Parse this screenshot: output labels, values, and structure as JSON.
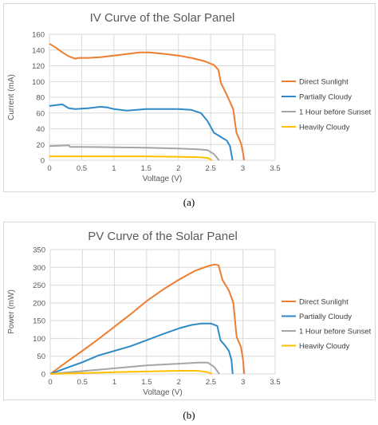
{
  "colors": {
    "direct": "#ED7D31",
    "partial": "#2E8AC6",
    "sunset": "#A5A5A5",
    "heavy": "#FFC000",
    "grid": "#D9D9D9",
    "text": "#595959"
  },
  "captions": {
    "a": "(a)",
    "b": "(b)"
  },
  "chart_data": [
    {
      "type": "line",
      "title": "IV Curve of the Solar Panel",
      "xlabel": "Voltage (V)",
      "ylabel": "Current (mA)",
      "xlim": [
        0,
        3.5
      ],
      "ylim": [
        0,
        160
      ],
      "xticks": [
        "0",
        "0.5",
        "1",
        "1.5",
        "2",
        "2.5",
        "3",
        "3.5"
      ],
      "yticks": [
        "0",
        "20",
        "40",
        "60",
        "80",
        "100",
        "120",
        "140",
        "160"
      ],
      "grid": true,
      "legend_position": "right",
      "series": [
        {
          "name": "Direct Sunlight",
          "color_key": "direct",
          "points": [
            [
              0,
              148
            ],
            [
              0.1,
              143
            ],
            [
              0.2,
              137
            ],
            [
              0.3,
              132
            ],
            [
              0.4,
              129
            ],
            [
              0.45,
              130
            ],
            [
              0.6,
              130
            ],
            [
              0.8,
              131
            ],
            [
              1.0,
              133
            ],
            [
              1.2,
              135
            ],
            [
              1.4,
              137
            ],
            [
              1.55,
              137
            ],
            [
              1.8,
              135
            ],
            [
              2.0,
              133
            ],
            [
              2.2,
              130
            ],
            [
              2.4,
              126
            ],
            [
              2.55,
              121
            ],
            [
              2.62,
              115
            ],
            [
              2.66,
              98
            ],
            [
              2.75,
              83
            ],
            [
              2.85,
              65
            ],
            [
              2.9,
              35
            ],
            [
              2.97,
              22
            ],
            [
              3.0,
              10
            ],
            [
              3.02,
              0
            ]
          ]
        },
        {
          "name": "Partially Cloudy",
          "color_key": "partial",
          "points": [
            [
              0,
              69
            ],
            [
              0.1,
              70
            ],
            [
              0.2,
              71
            ],
            [
              0.3,
              66
            ],
            [
              0.4,
              65
            ],
            [
              0.6,
              66
            ],
            [
              0.8,
              68
            ],
            [
              0.9,
              67
            ],
            [
              1.0,
              65
            ],
            [
              1.2,
              63
            ],
            [
              1.5,
              65
            ],
            [
              2.0,
              65
            ],
            [
              2.2,
              64
            ],
            [
              2.35,
              60
            ],
            [
              2.45,
              50
            ],
            [
              2.55,
              35
            ],
            [
              2.65,
              30
            ],
            [
              2.75,
              25
            ],
            [
              2.8,
              18
            ],
            [
              2.84,
              0
            ]
          ]
        },
        {
          "name": "1 Hour before Sunset",
          "color_key": "sunset",
          "points": [
            [
              0,
              18
            ],
            [
              0.3,
              19
            ],
            [
              0.32,
              17
            ],
            [
              0.5,
              17
            ],
            [
              1.0,
              16.5
            ],
            [
              1.5,
              16
            ],
            [
              2.0,
              15
            ],
            [
              2.3,
              14
            ],
            [
              2.45,
              13
            ],
            [
              2.55,
              8
            ],
            [
              2.6,
              3
            ],
            [
              2.63,
              0
            ]
          ]
        },
        {
          "name": "Heavily Cloudy",
          "color_key": "heavy",
          "points": [
            [
              0,
              5
            ],
            [
              0.5,
              5
            ],
            [
              1.0,
              5
            ],
            [
              1.5,
              5
            ],
            [
              2.0,
              4.5
            ],
            [
              2.3,
              4
            ],
            [
              2.45,
              3
            ],
            [
              2.52,
              0
            ]
          ]
        }
      ]
    },
    {
      "type": "line",
      "title": "PV Curve of the Solar Panel",
      "xlabel": "Voltage (V)",
      "ylabel": "Power (mW)",
      "xlim": [
        0,
        3.5
      ],
      "ylim": [
        0,
        350
      ],
      "xticks": [
        "0",
        "0.5",
        "1",
        "1.5",
        "2",
        "2.5",
        "3",
        "3.5"
      ],
      "yticks": [
        "0",
        "50",
        "100",
        "150",
        "200",
        "250",
        "300",
        "350"
      ],
      "grid": true,
      "legend_position": "right",
      "series": [
        {
          "name": "Direct Sunlight",
          "color_key": "direct",
          "points": [
            [
              0,
              0
            ],
            [
              0.25,
              33
            ],
            [
              0.5,
              65
            ],
            [
              0.75,
              98
            ],
            [
              1.0,
              133
            ],
            [
              1.25,
              168
            ],
            [
              1.5,
              205
            ],
            [
              1.75,
              237
            ],
            [
              2.0,
              265
            ],
            [
              2.25,
              290
            ],
            [
              2.45,
              303
            ],
            [
              2.55,
              308
            ],
            [
              2.62,
              306
            ],
            [
              2.68,
              265
            ],
            [
              2.78,
              235
            ],
            [
              2.85,
              200
            ],
            [
              2.9,
              105
            ],
            [
              2.97,
              75
            ],
            [
              3.0,
              40
            ],
            [
              3.02,
              0
            ]
          ]
        },
        {
          "name": "Partially Cloudy",
          "color_key": "partial",
          "points": [
            [
              0,
              0
            ],
            [
              0.3,
              20
            ],
            [
              0.5,
              33
            ],
            [
              0.75,
              52
            ],
            [
              1.0,
              65
            ],
            [
              1.25,
              78
            ],
            [
              1.5,
              95
            ],
            [
              1.75,
              112
            ],
            [
              2.0,
              128
            ],
            [
              2.2,
              138
            ],
            [
              2.35,
              142
            ],
            [
              2.5,
              142
            ],
            [
              2.6,
              135
            ],
            [
              2.65,
              95
            ],
            [
              2.72,
              80
            ],
            [
              2.78,
              65
            ],
            [
              2.82,
              40
            ],
            [
              2.84,
              0
            ]
          ]
        },
        {
          "name": "1 Hour before Sunset",
          "color_key": "sunset",
          "points": [
            [
              0,
              0
            ],
            [
              0.3,
              5
            ],
            [
              0.5,
              8
            ],
            [
              1.0,
              16
            ],
            [
              1.5,
              24
            ],
            [
              2.0,
              29
            ],
            [
              2.3,
              32
            ],
            [
              2.45,
              32
            ],
            [
              2.55,
              20
            ],
            [
              2.6,
              8
            ],
            [
              2.63,
              0
            ]
          ]
        },
        {
          "name": "Heavily Cloudy",
          "color_key": "heavy",
          "points": [
            [
              0,
              0
            ],
            [
              0.5,
              2.5
            ],
            [
              1.0,
              5
            ],
            [
              1.5,
              7
            ],
            [
              2.0,
              9
            ],
            [
              2.3,
              9
            ],
            [
              2.45,
              5
            ],
            [
              2.52,
              0
            ]
          ]
        }
      ]
    }
  ]
}
